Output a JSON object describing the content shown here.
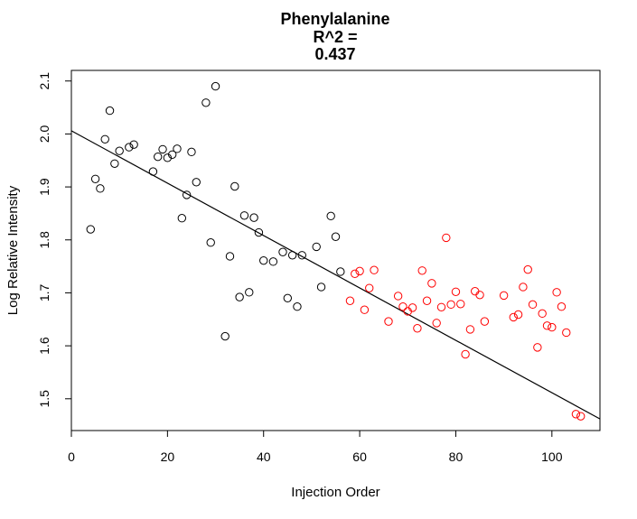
{
  "chart_data": {
    "type": "scatter",
    "title_lines": [
      "Phenylalanine",
      "R^2 =",
      "0.437"
    ],
    "xlabel": "Injection Order",
    "ylabel": "Log Relative Intensity",
    "xlim": [
      0,
      110
    ],
    "ylim": [
      1.44,
      2.12
    ],
    "xticks": [
      0,
      20,
      40,
      60,
      80,
      100
    ],
    "yticks": [
      1.5,
      1.6,
      1.7,
      1.8,
      1.9,
      2.0,
      2.1
    ],
    "grid": false,
    "legend": "none",
    "series": [
      {
        "color": "#000000",
        "points": [
          [
            4,
            1.82
          ],
          [
            5,
            1.915
          ],
          [
            6,
            1.897
          ],
          [
            7,
            1.99
          ],
          [
            8,
            2.044
          ],
          [
            9,
            1.944
          ],
          [
            10,
            1.968
          ],
          [
            12,
            1.975
          ],
          [
            13,
            1.98
          ],
          [
            17,
            1.929
          ],
          [
            18,
            1.957
          ],
          [
            19,
            1.971
          ],
          [
            20,
            1.955
          ],
          [
            21,
            1.961
          ],
          [
            22,
            1.972
          ],
          [
            23,
            1.841
          ],
          [
            24,
            1.885
          ],
          [
            25,
            1.966
          ],
          [
            26,
            1.909
          ],
          [
            28,
            2.059
          ],
          [
            29,
            1.795
          ],
          [
            30,
            2.09
          ],
          [
            32,
            1.618
          ],
          [
            33,
            1.769
          ],
          [
            34,
            1.901
          ],
          [
            35,
            1.692
          ],
          [
            36,
            1.846
          ],
          [
            37,
            1.701
          ],
          [
            38,
            1.842
          ],
          [
            39,
            1.814
          ],
          [
            40,
            1.761
          ],
          [
            42,
            1.759
          ],
          [
            44,
            1.777
          ],
          [
            45,
            1.69
          ],
          [
            46,
            1.771
          ],
          [
            47,
            1.674
          ],
          [
            48,
            1.771
          ],
          [
            51,
            1.787
          ],
          [
            52,
            1.711
          ],
          [
            54,
            1.845
          ],
          [
            55,
            1.806
          ],
          [
            56,
            1.74
          ]
        ]
      },
      {
        "color": "#ff0000",
        "points": [
          [
            58,
            1.685
          ],
          [
            59,
            1.736
          ],
          [
            60,
            1.741
          ],
          [
            61,
            1.668
          ],
          [
            62,
            1.709
          ],
          [
            63,
            1.743
          ],
          [
            66,
            1.646
          ],
          [
            68,
            1.694
          ],
          [
            69,
            1.674
          ],
          [
            70,
            1.665
          ],
          [
            71,
            1.672
          ],
          [
            72,
            1.633
          ],
          [
            73,
            1.742
          ],
          [
            74,
            1.685
          ],
          [
            75,
            1.718
          ],
          [
            76,
            1.643
          ],
          [
            77,
            1.673
          ],
          [
            78,
            1.804
          ],
          [
            79,
            1.678
          ],
          [
            80,
            1.702
          ],
          [
            81,
            1.679
          ],
          [
            82,
            1.584
          ],
          [
            83,
            1.631
          ],
          [
            84,
            1.703
          ],
          [
            85,
            1.696
          ],
          [
            86,
            1.646
          ],
          [
            90,
            1.695
          ],
          [
            92,
            1.654
          ],
          [
            93,
            1.659
          ],
          [
            94,
            1.711
          ],
          [
            95,
            1.744
          ],
          [
            96,
            1.678
          ],
          [
            97,
            1.597
          ],
          [
            98,
            1.661
          ],
          [
            99,
            1.638
          ],
          [
            100,
            1.635
          ],
          [
            101,
            1.701
          ],
          [
            102,
            1.674
          ],
          [
            103,
            1.625
          ],
          [
            105,
            1.471
          ],
          [
            106,
            1.467
          ]
        ]
      }
    ],
    "regression_line": {
      "x": [
        0,
        110
      ],
      "y": [
        2.006,
        1.462
      ],
      "color": "#000000"
    }
  }
}
